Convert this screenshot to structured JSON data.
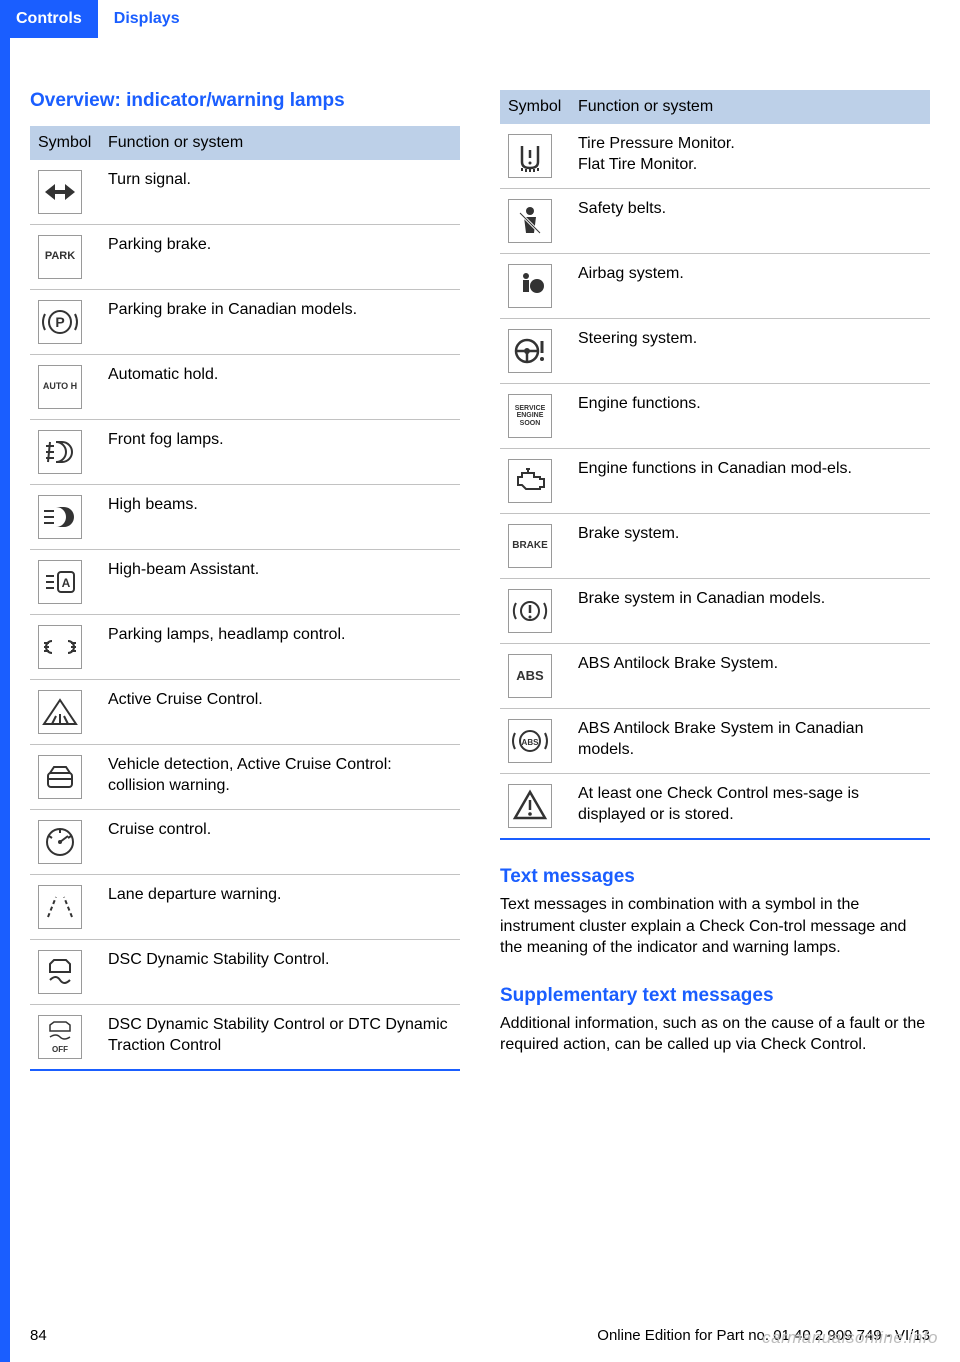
{
  "tabs": {
    "active": "Controls",
    "inactive": "Displays"
  },
  "headings": {
    "overview": "Overview: indicator/warning lamps",
    "text_messages": "Text messages",
    "supp_text": "Supplementary text messages"
  },
  "table_header": {
    "symbol": "Symbol",
    "function": "Function or system"
  },
  "left_rows": [
    {
      "icon": "turn-signal",
      "text": "Turn signal."
    },
    {
      "icon": "park-text",
      "text": "Parking brake."
    },
    {
      "icon": "park-circle",
      "text": "Parking brake in Canadian models."
    },
    {
      "icon": "auto-h",
      "text": "Automatic hold."
    },
    {
      "icon": "fog",
      "text": "Front fog lamps."
    },
    {
      "icon": "high-beam",
      "text": "High beams."
    },
    {
      "icon": "high-beam-assist",
      "text": "High-beam Assistant."
    },
    {
      "icon": "parking-lamps",
      "text": "Parking lamps, headlamp control."
    },
    {
      "icon": "active-cruise",
      "text": "Active Cruise Control."
    },
    {
      "icon": "collision",
      "text": "Vehicle detection, Active Cruise Control: collision warning."
    },
    {
      "icon": "cruise",
      "text": "Cruise control."
    },
    {
      "icon": "lane-departure",
      "text": "Lane departure warning."
    },
    {
      "icon": "dsc",
      "text": "DSC Dynamic Stability Control."
    },
    {
      "icon": "dsc-off",
      "text": "DSC Dynamic Stability Control or DTC Dynamic Traction Control"
    }
  ],
  "right_rows": [
    {
      "icon": "tire-pressure",
      "text": "Tire Pressure Monitor.\nFlat Tire Monitor."
    },
    {
      "icon": "safety-belt",
      "text": "Safety belts."
    },
    {
      "icon": "airbag",
      "text": "Airbag system."
    },
    {
      "icon": "steering",
      "text": "Steering system."
    },
    {
      "icon": "service-engine",
      "text": "Engine functions."
    },
    {
      "icon": "engine-ca",
      "text": "Engine functions in Canadian mod‐els."
    },
    {
      "icon": "brake-text",
      "text": "Brake system."
    },
    {
      "icon": "brake-ca",
      "text": "Brake system in Canadian models."
    },
    {
      "icon": "abs-text",
      "text": "ABS Antilock Brake System."
    },
    {
      "icon": "abs-ca",
      "text": "ABS Antilock Brake System in Canadian models."
    },
    {
      "icon": "warning-triangle",
      "text": "At least one Check Control mes‐sage is displayed or is stored."
    }
  ],
  "paragraphs": {
    "text_messages": "Text messages in combination with a symbol in the instrument cluster explain a Check Con‐trol message and the meaning of the indicator and warning lamps.",
    "supp_text": "Additional information, such as on the cause of a fault or the required action, can be called up via Check Control."
  },
  "footer": {
    "page_number": "84",
    "edition": "Online Edition for Part no. 01 40 2 909 749 - VI/13",
    "watermark": "carmanualsonline.info"
  },
  "icon_labels": {
    "park-text": "PARK",
    "auto-h": "AUTO H",
    "service-engine": "SERVICE\nENGINE\nSOON",
    "brake-text": "BRAKE",
    "abs-text": "ABS"
  },
  "colors": {
    "accent": "#1a5eff",
    "header_bg": "#bdd0e8",
    "row_border": "#c2c2c2",
    "icon_border": "#9a9a9a",
    "text": "#000000",
    "watermark": "#bdbdbd"
  }
}
